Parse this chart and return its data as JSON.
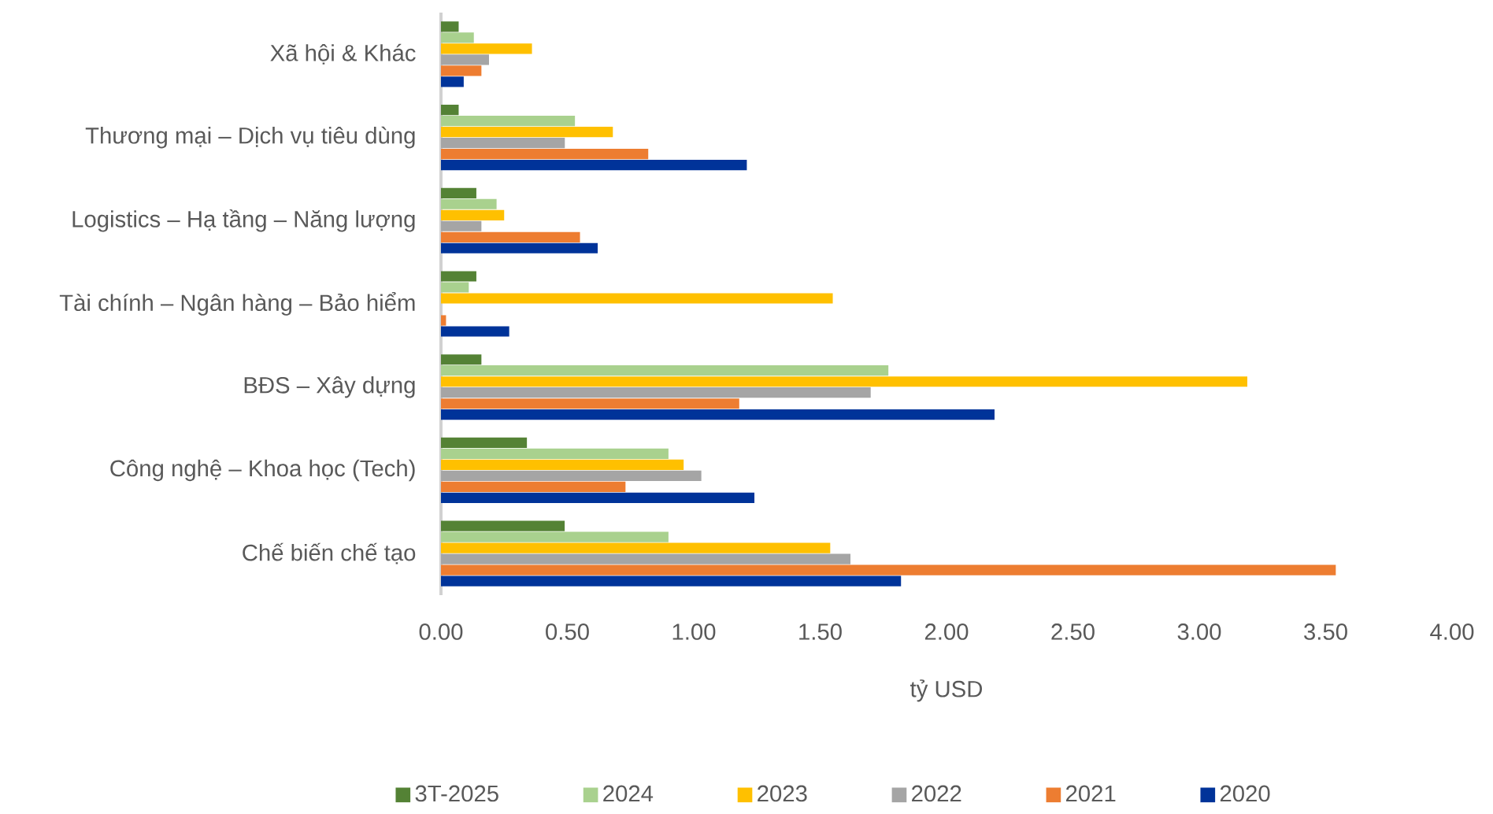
{
  "chart_data": {
    "type": "bar",
    "orientation": "horizontal",
    "xlabel": "tỷ USD",
    "categories": [
      "Xã hội & Khác",
      "Thương mại – Dịch vụ tiêu dùng",
      "Logistics – Hạ tầng – Năng lượng",
      "Tài chính – Ngân hàng – Bảo hiểm",
      "BĐS – Xây dựng",
      "Công nghệ – Khoa học (Tech)",
      "Chế biến chế tạo"
    ],
    "series": [
      {
        "name": "3T-2025",
        "color": "#548235",
        "values": [
          0.07,
          0.07,
          0.14,
          0.14,
          0.16,
          0.34,
          0.49
        ]
      },
      {
        "name": "2024",
        "color": "#a9d18e",
        "values": [
          0.13,
          0.53,
          0.22,
          0.11,
          1.77,
          0.9,
          0.9
        ]
      },
      {
        "name": "2023",
        "color": "#ffc000",
        "values": [
          0.36,
          0.68,
          0.25,
          1.55,
          3.19,
          0.96,
          1.54
        ]
      },
      {
        "name": "2022",
        "color": "#a5a5a5",
        "values": [
          0.19,
          0.49,
          0.16,
          0,
          1.7,
          1.03,
          1.62
        ]
      },
      {
        "name": "2021",
        "color": "#ed7d31",
        "values": [
          0.16,
          0.82,
          0.55,
          0.02,
          1.18,
          0.73,
          3.54
        ]
      },
      {
        "name": "2020",
        "color": "#003399",
        "values": [
          0.09,
          1.21,
          0.62,
          0.27,
          2.19,
          1.24,
          1.82
        ]
      }
    ],
    "xlim": [
      0,
      4
    ],
    "xticks": [
      {
        "value": 0,
        "label": "0.00"
      },
      {
        "value": 0.5,
        "label": "0.50"
      },
      {
        "value": 1,
        "label": "1.00"
      },
      {
        "value": 1.5,
        "label": "1.50"
      },
      {
        "value": 2,
        "label": "2.00"
      },
      {
        "value": 2.5,
        "label": "2.50"
      },
      {
        "value": 3,
        "label": "3.00"
      },
      {
        "value": 3.5,
        "label": "3.50"
      },
      {
        "value": 4,
        "label": "4.00"
      }
    ],
    "grid": false,
    "legend": "bottom"
  }
}
